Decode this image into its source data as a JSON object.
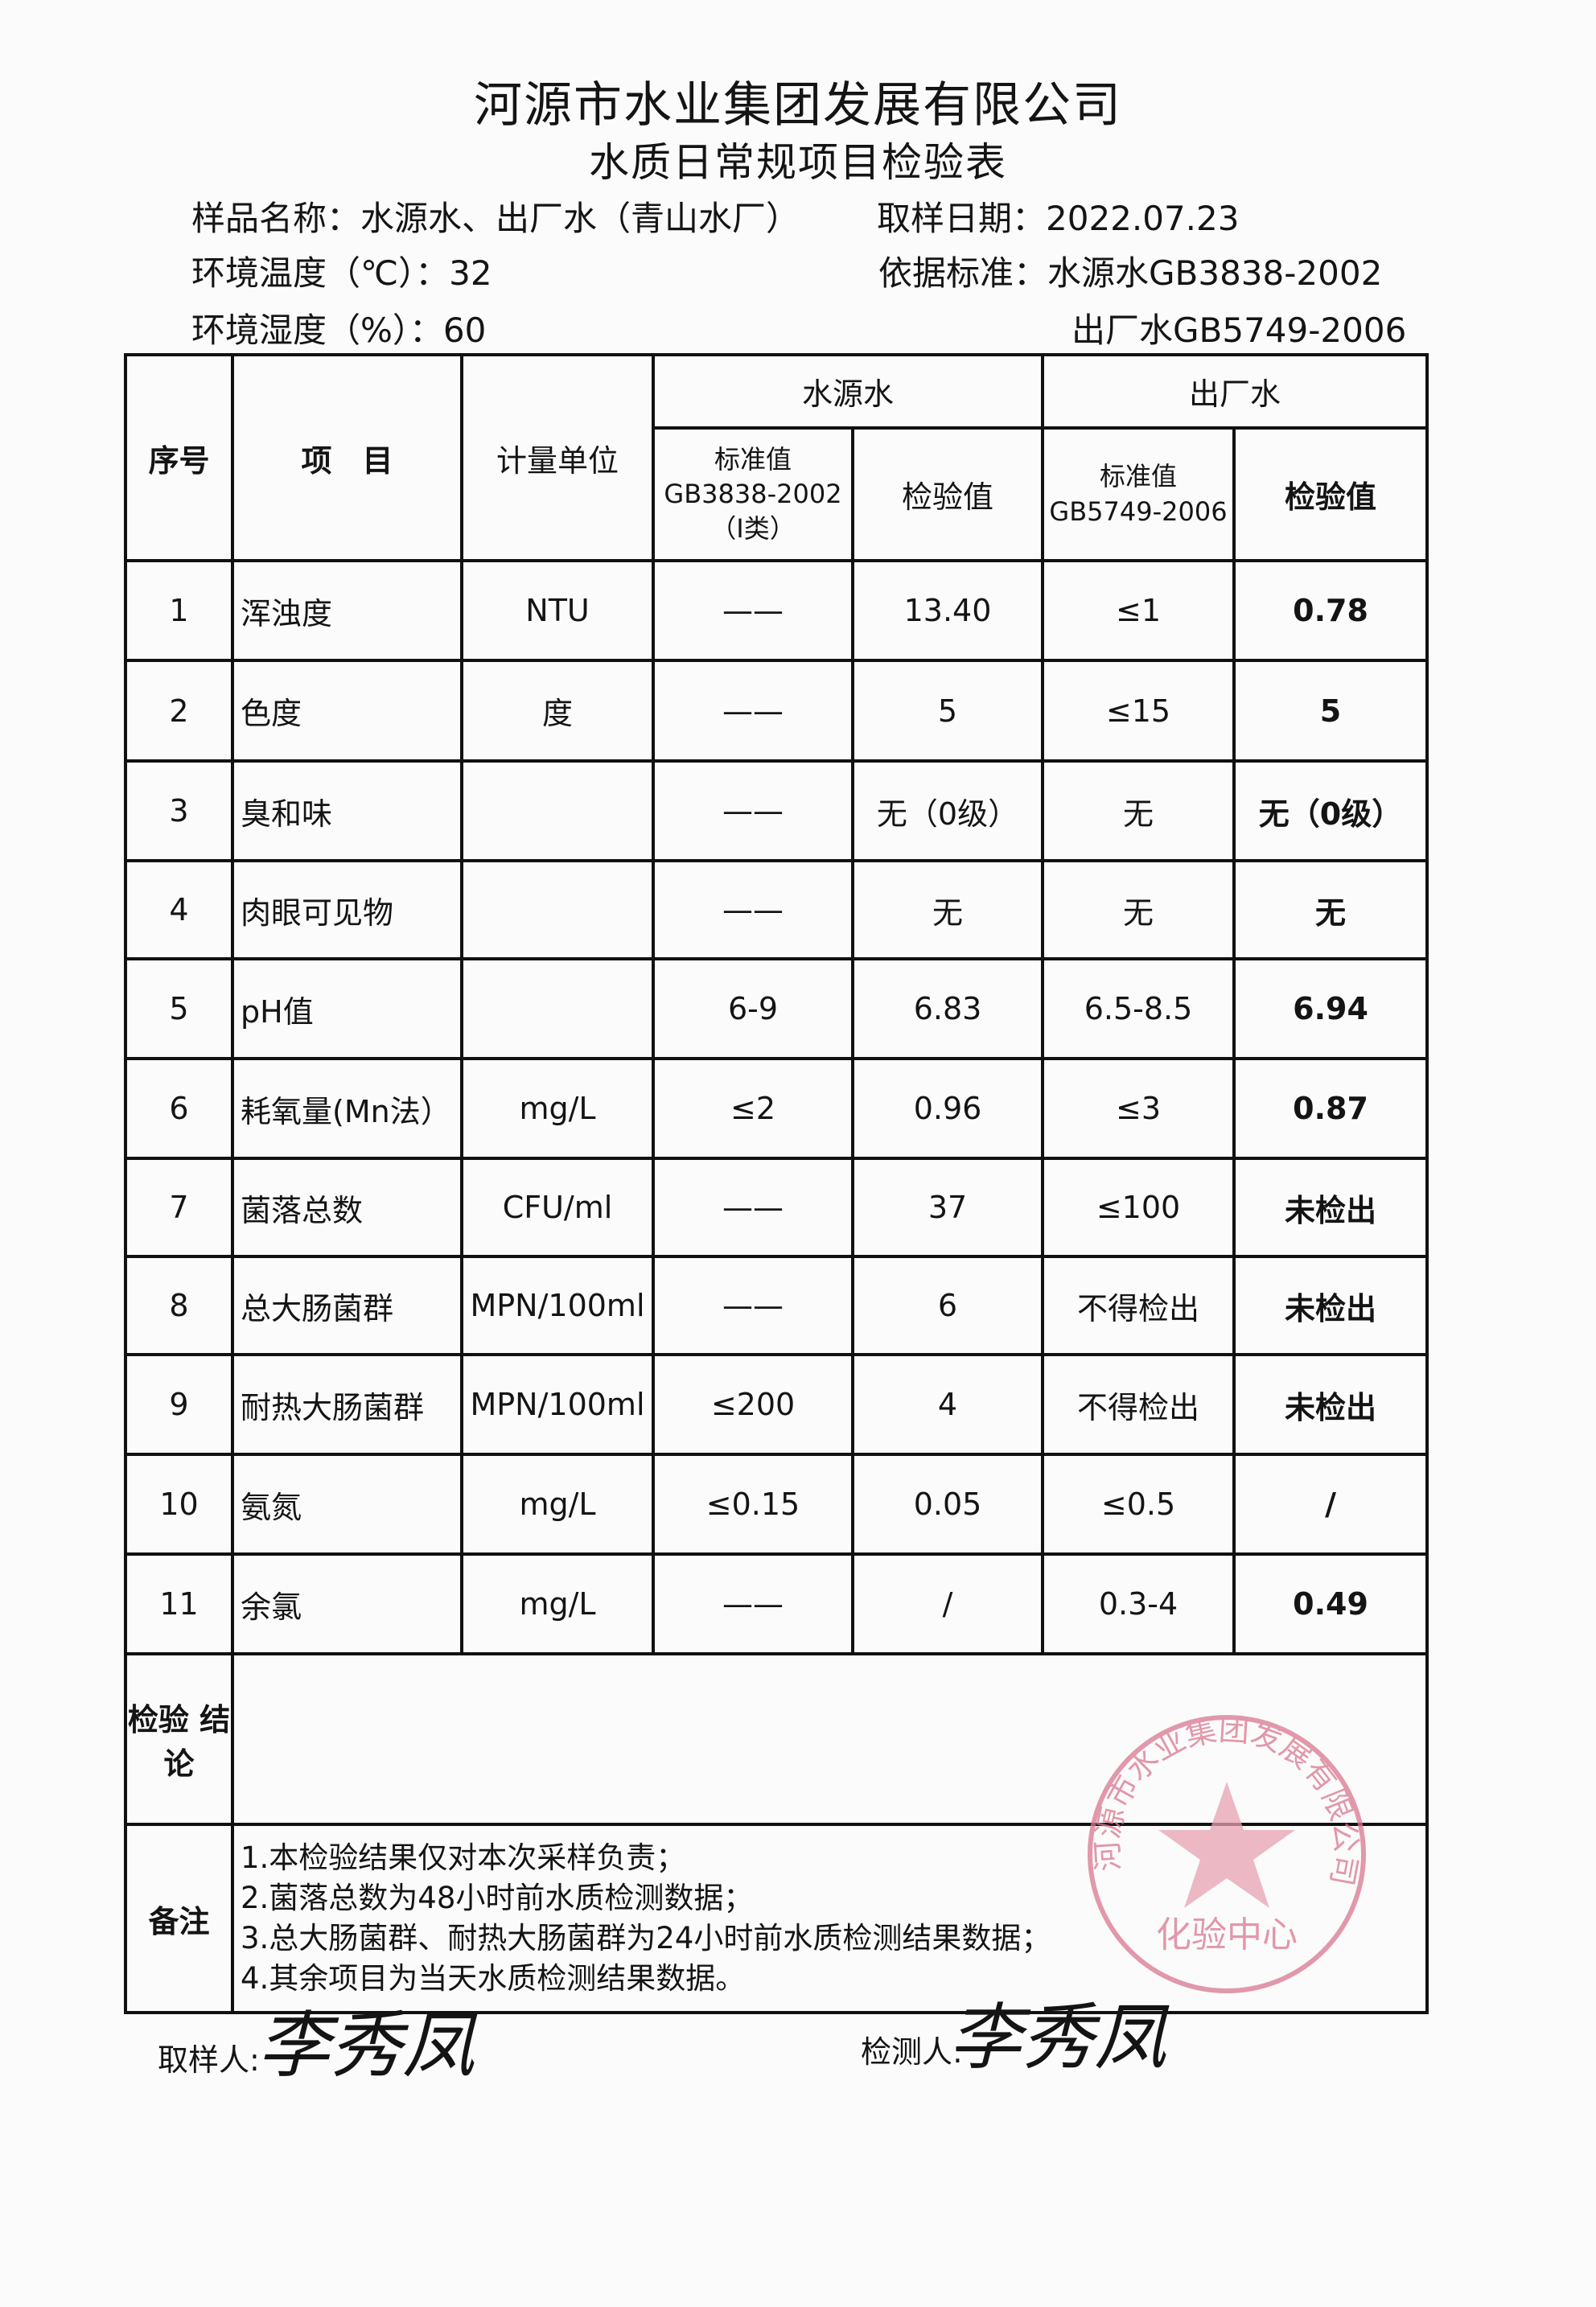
{
  "header": {
    "title": "河源市水业集团发展有限公司",
    "subtitle": "水质日常规项目检验表",
    "sample_name": "样品名称：水源水、出厂水（青山水厂）",
    "sample_date": "取样日期：2022.07.23",
    "temperature": "环境温度（℃）：32",
    "humidity": "环境湿度（%）：60",
    "standard_source": "依据标准：水源水GB3838-2002",
    "standard_factory": "出厂水GB5749-2006"
  },
  "table": {
    "col_no": "序号",
    "col_item": "项　目",
    "col_unit": "计量单位",
    "group_source": "水源水",
    "group_factory": "出厂水",
    "source_std": "标准值 GB3838-2002 （Ⅰ类）",
    "source_val": "检验值",
    "factory_std": "标准值 GB5749-2006",
    "factory_val": "检验值",
    "rows": [
      {
        "no": "1",
        "item": "浑浊度",
        "unit": "NTU",
        "s_std": "——",
        "s_val": "13.40",
        "f_std": "≤1",
        "f_val": "0.78"
      },
      {
        "no": "2",
        "item": "色度",
        "unit": "度",
        "s_std": "——",
        "s_val": "5",
        "f_std": "≤15",
        "f_val": "5"
      },
      {
        "no": "3",
        "item": "臭和味",
        "unit": "",
        "s_std": "——",
        "s_val": "无（0级）",
        "f_std": "无",
        "f_val": "无（0级）"
      },
      {
        "no": "4",
        "item": "肉眼可见物",
        "unit": "",
        "s_std": "——",
        "s_val": "无",
        "f_std": "无",
        "f_val": "无"
      },
      {
        "no": "5",
        "item": "pH值",
        "unit": "",
        "s_std": "6-9",
        "s_val": "6.83",
        "f_std": "6.5-8.5",
        "f_val": "6.94"
      },
      {
        "no": "6",
        "item": "耗氧量(Mn法）",
        "unit": "mg/L",
        "s_std": "≤2",
        "s_val": "0.96",
        "f_std": "≤3",
        "f_val": "0.87"
      },
      {
        "no": "7",
        "item": "菌落总数",
        "unit": "CFU/ml",
        "s_std": "——",
        "s_val": "37",
        "f_std": "≤100",
        "f_val": "未检出"
      },
      {
        "no": "8",
        "item": "总大肠菌群",
        "unit": "MPN/100ml",
        "s_std": "——",
        "s_val": "6",
        "f_std": "不得检出",
        "f_val": "未检出"
      },
      {
        "no": "9",
        "item": "耐热大肠菌群",
        "unit": "MPN/100ml",
        "s_std": "≤200",
        "s_val": "4",
        "f_std": "不得检出",
        "f_val": "未检出"
      },
      {
        "no": "10",
        "item": "氨氮",
        "unit": "mg/L",
        "s_std": "≤0.15",
        "s_val": "0.05",
        "f_std": "≤0.5",
        "f_val": "/"
      },
      {
        "no": "11",
        "item": "余氯",
        "unit": "mg/L",
        "s_std": "——",
        "s_val": "/",
        "f_std": "0.3-4",
        "f_val": "0.49"
      }
    ],
    "conclusion_label": "检验 结论",
    "conclusion": "",
    "notes_label": "备注",
    "notes": [
      "1.本检验结果仅对本次采样负责；",
      "2.菌落总数为48小时前水质检测数据；",
      "3.总大肠菌群、耐热大肠菌群为24小时前水质检测结果数据；",
      "4.其余项目为当天水质检测结果数据。"
    ]
  },
  "footer": {
    "sampler_label": "取样人:",
    "sampler_signature": "李秀凤",
    "tester_label": "检测人:",
    "tester_signature": "李秀凤"
  },
  "stamp": {
    "text": "河源市水业集团发展有限公司",
    "center_text": "化验中心",
    "color": "#d9788f"
  }
}
